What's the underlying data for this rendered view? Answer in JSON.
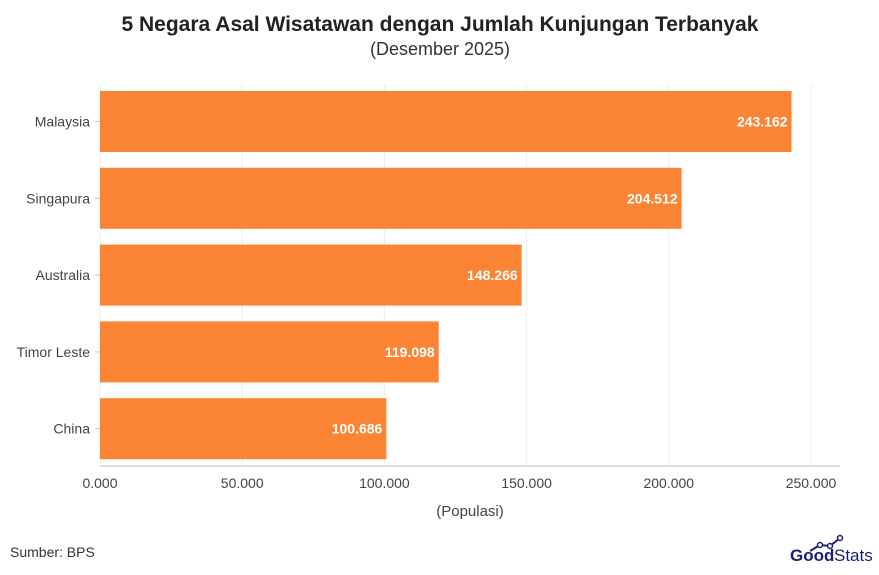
{
  "chart_data": {
    "type": "bar",
    "orientation": "horizontal",
    "title": "5 Negara Asal Wisatawan dengan Jumlah Kunjungan Terbanyak",
    "subtitle": "(Desember 2025)",
    "xlabel": "(Populasi)",
    "ylabel": "",
    "categories": [
      "Malaysia",
      "Singapura",
      "Australia",
      "Timor Leste",
      "China"
    ],
    "values": [
      243162,
      204512,
      148266,
      119098,
      100686
    ],
    "data_labels": [
      "243.162",
      "204.512",
      "148.266",
      "119.098",
      "100.686"
    ],
    "xlim": [
      0,
      260000
    ],
    "xticks": [
      0,
      50000,
      100000,
      150000,
      200000,
      250000
    ],
    "xtick_labels": [
      "0.000",
      "50.000",
      "100.000",
      "150.000",
      "200.000",
      "250.000"
    ],
    "grid": true,
    "bar_color": "#FA8334"
  },
  "footer": {
    "source": "Sumber: BPS",
    "logo_text": "GoodStats",
    "logo_color": "#1a1f71"
  }
}
